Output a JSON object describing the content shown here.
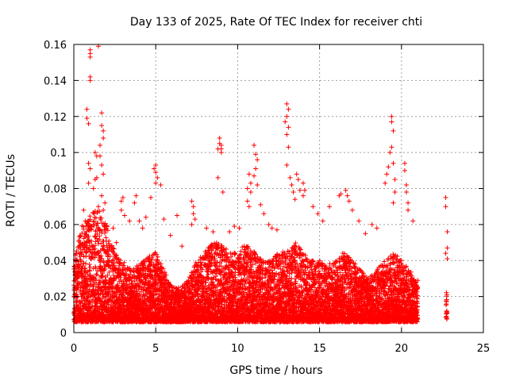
{
  "chart_data": {
    "type": "scatter",
    "title": "Day 133 of 2025, Rate Of TEC Index for receiver chti",
    "xlabel": "GPS time / hours",
    "ylabel": "ROTI / TECUs",
    "xlim": [
      0,
      25
    ],
    "ylim": [
      0,
      0.16
    ],
    "x_ticks": [
      0,
      5,
      10,
      15,
      20,
      25
    ],
    "y_ticks": [
      0,
      0.02,
      0.04,
      0.06,
      0.08,
      0.1,
      0.12,
      0.14,
      0.16
    ],
    "x_tick_labels": [
      "0",
      "5",
      "10",
      "15",
      "20",
      "25"
    ],
    "y_tick_labels": [
      "0",
      "0.02",
      "0.04",
      "0.06",
      "0.08",
      "0.1",
      "0.12",
      "0.14",
      "0.16"
    ],
    "grid": true,
    "marker": "plus",
    "color": "#ff0000",
    "envelope": {
      "description_units": "upper extent of dense cloud vs hour",
      "x": [
        0.0,
        0.5,
        1.0,
        1.5,
        2.0,
        2.5,
        3.0,
        3.5,
        4.0,
        4.5,
        5.0,
        5.5,
        6.0,
        6.5,
        7.0,
        7.5,
        8.0,
        8.5,
        9.0,
        9.5,
        10.0,
        10.5,
        11.0,
        11.5,
        12.0,
        12.5,
        13.0,
        13.5,
        14.0,
        14.5,
        15.0,
        15.5,
        16.0,
        16.5,
        17.0,
        17.5,
        18.0,
        18.5,
        19.0,
        19.5,
        20.0,
        20.5,
        21.0
      ],
      "upper": [
        0.04,
        0.06,
        0.065,
        0.07,
        0.06,
        0.045,
        0.04,
        0.035,
        0.038,
        0.042,
        0.045,
        0.035,
        0.025,
        0.025,
        0.03,
        0.04,
        0.045,
        0.05,
        0.05,
        0.045,
        0.045,
        0.05,
        0.045,
        0.04,
        0.04,
        0.045,
        0.045,
        0.05,
        0.045,
        0.04,
        0.04,
        0.038,
        0.04,
        0.045,
        0.04,
        0.035,
        0.03,
        0.035,
        0.04,
        0.045,
        0.04,
        0.035,
        0.025
      ]
    },
    "points": [
      [
        0.6,
        0.068
      ],
      [
        0.7,
        0.062
      ],
      [
        0.9,
        0.057
      ],
      [
        1.0,
        0.155
      ],
      [
        1.0,
        0.157
      ],
      [
        1.0,
        0.153
      ],
      [
        1.0,
        0.142
      ],
      [
        1.0,
        0.14
      ],
      [
        0.8,
        0.124
      ],
      [
        0.8,
        0.119
      ],
      [
        0.9,
        0.116
      ],
      [
        0.9,
        0.094
      ],
      [
        0.9,
        0.083
      ],
      [
        1.0,
        0.091
      ],
      [
        1.3,
        0.1
      ],
      [
        1.4,
        0.098
      ],
      [
        1.3,
        0.085
      ],
      [
        1.4,
        0.086
      ],
      [
        1.2,
        0.08
      ],
      [
        1.5,
        0.07
      ],
      [
        1.5,
        0.159
      ],
      [
        1.7,
        0.122
      ],
      [
        1.7,
        0.115
      ],
      [
        1.8,
        0.112
      ],
      [
        1.8,
        0.108
      ],
      [
        1.6,
        0.104
      ],
      [
        1.6,
        0.098
      ],
      [
        1.7,
        0.093
      ],
      [
        1.8,
        0.088
      ],
      [
        1.7,
        0.076
      ],
      [
        1.9,
        0.072
      ],
      [
        1.8,
        0.068
      ],
      [
        2.4,
        0.058
      ],
      [
        2.6,
        0.05
      ],
      [
        2.9,
        0.073
      ],
      [
        3.0,
        0.075
      ],
      [
        2.9,
        0.068
      ],
      [
        3.1,
        0.065
      ],
      [
        3.4,
        0.062
      ],
      [
        3.7,
        0.072
      ],
      [
        3.8,
        0.076
      ],
      [
        4.0,
        0.062
      ],
      [
        4.2,
        0.058
      ],
      [
        4.4,
        0.064
      ],
      [
        4.7,
        0.075
      ],
      [
        4.9,
        0.091
      ],
      [
        5.0,
        0.093
      ],
      [
        5.0,
        0.089
      ],
      [
        5.1,
        0.086
      ],
      [
        5.0,
        0.083
      ],
      [
        5.3,
        0.082
      ],
      [
        5.5,
        0.063
      ],
      [
        5.9,
        0.054
      ],
      [
        6.3,
        0.065
      ],
      [
        6.6,
        0.048
      ],
      [
        7.2,
        0.073
      ],
      [
        7.3,
        0.07
      ],
      [
        7.3,
        0.066
      ],
      [
        7.4,
        0.063
      ],
      [
        7.2,
        0.06
      ],
      [
        8.1,
        0.058
      ],
      [
        8.5,
        0.056
      ],
      [
        8.9,
        0.108
      ],
      [
        8.9,
        0.105
      ],
      [
        9.0,
        0.104
      ],
      [
        9.0,
        0.102
      ],
      [
        8.8,
        0.102
      ],
      [
        9.0,
        0.1
      ],
      [
        8.8,
        0.086
      ],
      [
        9.1,
        0.078
      ],
      [
        9.5,
        0.056
      ],
      [
        9.8,
        0.059
      ],
      [
        10.1,
        0.058
      ],
      [
        10.6,
        0.08
      ],
      [
        10.7,
        0.088
      ],
      [
        10.8,
        0.083
      ],
      [
        10.8,
        0.078
      ],
      [
        10.6,
        0.073
      ],
      [
        10.7,
        0.07
      ],
      [
        11.0,
        0.104
      ],
      [
        11.1,
        0.099
      ],
      [
        11.2,
        0.096
      ],
      [
        11.1,
        0.091
      ],
      [
        11.0,
        0.087
      ],
      [
        11.2,
        0.082
      ],
      [
        11.4,
        0.071
      ],
      [
        11.6,
        0.066
      ],
      [
        11.9,
        0.06
      ],
      [
        12.1,
        0.058
      ],
      [
        12.4,
        0.057
      ],
      [
        13.0,
        0.127
      ],
      [
        13.1,
        0.124
      ],
      [
        13.0,
        0.12
      ],
      [
        12.9,
        0.117
      ],
      [
        13.1,
        0.114
      ],
      [
        13.0,
        0.11
      ],
      [
        13.1,
        0.103
      ],
      [
        13.0,
        0.093
      ],
      [
        13.2,
        0.086
      ],
      [
        13.3,
        0.082
      ],
      [
        13.4,
        0.078
      ],
      [
        13.5,
        0.074
      ],
      [
        13.6,
        0.088
      ],
      [
        13.7,
        0.085
      ],
      [
        13.8,
        0.079
      ],
      [
        14.0,
        0.083
      ],
      [
        14.1,
        0.079
      ],
      [
        14.0,
        0.076
      ],
      [
        14.6,
        0.07
      ],
      [
        14.9,
        0.066
      ],
      [
        15.2,
        0.062
      ],
      [
        15.6,
        0.07
      ],
      [
        16.2,
        0.076
      ],
      [
        16.3,
        0.077
      ],
      [
        16.6,
        0.079
      ],
      [
        16.7,
        0.076
      ],
      [
        16.8,
        0.073
      ],
      [
        17.0,
        0.068
      ],
      [
        17.4,
        0.062
      ],
      [
        17.8,
        0.055
      ],
      [
        18.2,
        0.06
      ],
      [
        18.5,
        0.058
      ],
      [
        19.0,
        0.083
      ],
      [
        19.1,
        0.088
      ],
      [
        19.2,
        0.092
      ],
      [
        19.4,
        0.12
      ],
      [
        19.4,
        0.117
      ],
      [
        19.5,
        0.112
      ],
      [
        19.4,
        0.103
      ],
      [
        19.3,
        0.1
      ],
      [
        19.5,
        0.094
      ],
      [
        19.6,
        0.085
      ],
      [
        19.6,
        0.078
      ],
      [
        19.5,
        0.072
      ],
      [
        20.2,
        0.094
      ],
      [
        20.2,
        0.09
      ],
      [
        20.3,
        0.082
      ],
      [
        20.3,
        0.078
      ],
      [
        20.4,
        0.072
      ],
      [
        20.4,
        0.068
      ],
      [
        20.7,
        0.062
      ],
      [
        20.9,
        0.028
      ],
      [
        21.0,
        0.029
      ],
      [
        22.7,
        0.075
      ],
      [
        22.7,
        0.07
      ],
      [
        22.8,
        0.056
      ],
      [
        22.8,
        0.047
      ],
      [
        22.7,
        0.044
      ],
      [
        22.8,
        0.041
      ]
    ]
  }
}
